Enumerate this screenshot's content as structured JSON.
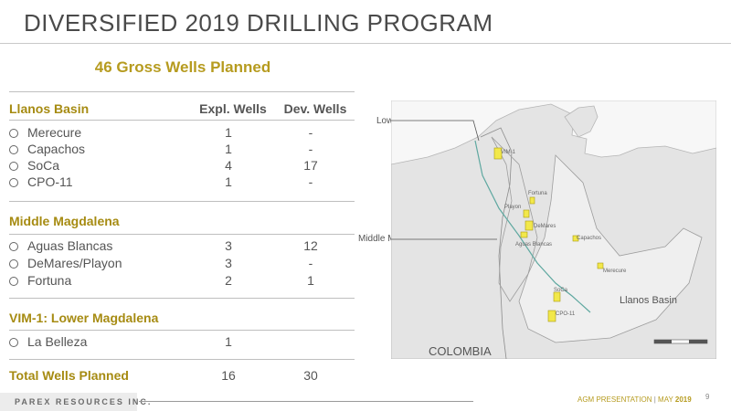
{
  "slide": {
    "title": "DIVERSIFIED 2019 DRILLING PROGRAM",
    "subtitle": "46 Gross Wells Planned",
    "columns": {
      "expl": "Expl. Wells",
      "dev": "Dev. Wells"
    }
  },
  "llanos": {
    "heading": "Llanos Basin",
    "rows": [
      {
        "name": "Merecure",
        "expl": "1",
        "dev": "-"
      },
      {
        "name": "Capachos",
        "expl": "1",
        "dev": "-"
      },
      {
        "name": "SoCa",
        "expl": "4",
        "dev": "17"
      },
      {
        "name": "CPO-11",
        "expl": "1",
        "dev": "-"
      }
    ]
  },
  "middle": {
    "heading": "Middle Magdalena",
    "rows": [
      {
        "name": "Aguas Blancas",
        "expl": "3",
        "dev": "12"
      },
      {
        "name": "DeMares/Playon",
        "expl": "3",
        "dev": "-"
      },
      {
        "name": "Fortuna",
        "expl": "2",
        "dev": "1"
      }
    ]
  },
  "lower": {
    "heading": "VIM-1: Lower Magdalena",
    "rows": [
      {
        "name": "La Belleza",
        "expl": "1",
        "dev": ""
      }
    ]
  },
  "total": {
    "label": "Total Wells Planned",
    "expl": "16",
    "dev": "30"
  },
  "map": {
    "callout_lower": "Lower Magdalena",
    "callout_middle": "Middle Magdalena",
    "country": "COLOMBIA",
    "basin": "Llanos Basin",
    "labels": {
      "vim1": "VIM-1",
      "fortuna": "Fortuna",
      "playon": "Playon",
      "demares": "DeMares",
      "aguas": "Aguas Blancas",
      "capachos": "Capachos",
      "merecure": "Merecure",
      "soca": "SoCa",
      "cpo11": "CPO-11"
    },
    "colors": {
      "block": "#f2e84a",
      "land": "#e6e6e6",
      "sea": "#ffffff",
      "border": "#5fa8a0"
    }
  },
  "footer": {
    "logo": "PAREX RESOURCES INC.",
    "presentation": "AGM PRESENTATION",
    "separator": "|",
    "month": "MAY",
    "year": "2019",
    "page": "9"
  }
}
